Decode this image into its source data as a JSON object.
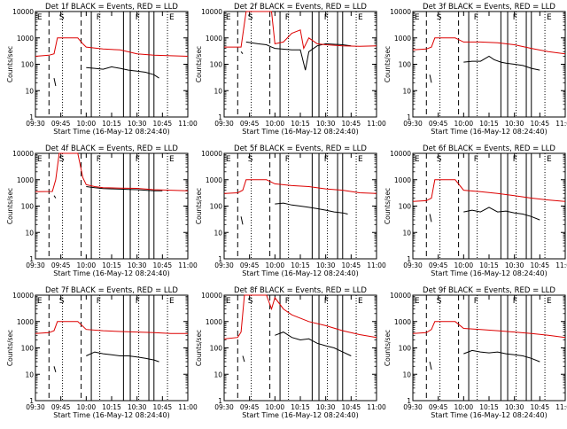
{
  "figure": {
    "xlabel_template": "Start Time (16-May-12 08:24:40)",
    "ylabel": "Counts/sec",
    "title_suffix": " BLACK = Events, RED = LLD",
    "xticks": [
      "09:30",
      "09:45",
      "10:00",
      "10:15",
      "10:30",
      "10:45",
      "11:00"
    ],
    "yticks": [
      "1",
      "10",
      "100",
      "1000",
      "10000"
    ],
    "marker_labels": [
      "E",
      "S",
      "F",
      "F",
      "E"
    ],
    "colors": {
      "events": "#000000",
      "lld": "#dd0000",
      "axes": "#000000"
    }
  },
  "chart_data": [
    {
      "type": "line",
      "title": "Det 1f BLACK = Events, RED = LLD",
      "xlabel": "Start Time (16-May-12 08:24:40)",
      "ylabel": "Counts/sec",
      "xrange": [
        "09:30",
        "11:00"
      ],
      "ylim": [
        1,
        10000
      ],
      "yscale": "log",
      "series": [
        {
          "name": "BLACK = Events",
          "segments": [
            {
              "x": [
                "09:41",
                "09:42"
              ],
              "y": [
                30,
                15
              ]
            },
            {
              "x": [
                "10:00",
                "10:05",
                "10:10",
                "10:15",
                "10:20",
                "10:25",
                "10:30",
                "10:35",
                "10:40",
                "10:43"
              ],
              "y": [
                75,
                70,
                65,
                80,
                70,
                60,
                55,
                50,
                40,
                30
              ]
            }
          ]
        },
        {
          "name": "RED = LLD",
          "segments": [
            {
              "x": [
                "09:30",
                "09:38",
                "09:41",
                "09:43",
                "09:45",
                "09:50",
                "09:55",
                "09:58",
                "10:00",
                "10:10",
                "10:20",
                "10:30",
                "10:40",
                "10:50",
                "11:00"
              ],
              "y": [
                200,
                220,
                250,
                1000,
                1000,
                1000,
                1000,
                600,
                450,
                380,
                350,
                250,
                220,
                210,
                200
              ]
            }
          ]
        }
      ]
    },
    {
      "type": "line",
      "title": "Det 2f BLACK = Events, RED = LLD",
      "xlabel": "Start Time (16-May-12 08:24:40)",
      "ylabel": "Counts/sec",
      "xrange": [
        "09:30",
        "11:00"
      ],
      "ylim": [
        1,
        10000
      ],
      "yscale": "log",
      "series": [
        {
          "name": "BLACK = Events",
          "segments": [
            {
              "x": [
                "09:40",
                "09:41"
              ],
              "y": [
                300,
                250
              ]
            },
            {
              "x": [
                "09:43",
                "09:50",
                "09:55",
                "09:58",
                "10:00",
                "10:10",
                "10:15",
                "10:18",
                "10:20",
                "10:25",
                "10:30",
                "10:40",
                "10:45"
              ],
              "y": [
                700,
                600,
                550,
                450,
                400,
                350,
                350,
                60,
                300,
                500,
                600,
                550,
                500
              ]
            }
          ]
        },
        {
          "name": "RED = LLD",
          "segments": [
            {
              "x": [
                "09:30",
                "09:40",
                "09:43",
                "09:50",
                "09:55",
                "09:58",
                "10:00",
                "10:05",
                "10:10",
                "10:15",
                "10:17",
                "10:20",
                "10:25",
                "10:30",
                "10:40",
                "10:50",
                "11:00"
              ],
              "y": [
                450,
                450,
                10000,
                10000,
                10000,
                10000,
                600,
                700,
                1500,
                2000,
                400,
                1000,
                600,
                550,
                500,
                480,
                500
              ]
            }
          ]
        }
      ]
    },
    {
      "type": "line",
      "title": "Det 3f BLACK = Events, RED = LLD",
      "xlabel": "Start Time (16-May-12 08:24:40)",
      "ylabel": "Counts/sec",
      "xrange": [
        "09:30",
        "11:00"
      ],
      "ylim": [
        1,
        10000
      ],
      "yscale": "log",
      "series": [
        {
          "name": "BLACK = Events",
          "segments": [
            {
              "x": [
                "09:40",
                "09:41"
              ],
              "y": [
                40,
                20
              ]
            },
            {
              "x": [
                "10:00",
                "10:05",
                "10:10",
                "10:15",
                "10:18",
                "10:22",
                "10:25",
                "10:30",
                "10:35",
                "10:40",
                "10:45"
              ],
              "y": [
                120,
                130,
                130,
                200,
                150,
                120,
                110,
                100,
                90,
                70,
                60
              ]
            }
          ]
        },
        {
          "name": "RED = LLD",
          "segments": [
            {
              "x": [
                "09:30",
                "09:38",
                "09:41",
                "09:43",
                "09:50",
                "09:55",
                "10:00",
                "10:10",
                "10:20",
                "10:30",
                "10:40",
                "10:50",
                "11:00"
              ],
              "y": [
                350,
                380,
                450,
                1000,
                1000,
                1000,
                700,
                700,
                650,
                550,
                400,
                300,
                250
              ]
            }
          ]
        }
      ]
    },
    {
      "type": "line",
      "title": "Det 4f BLACK = Events, RED = LLD",
      "xlabel": "Start Time (16-May-12 08:24:40)",
      "ylabel": "Counts/sec",
      "xrange": [
        "09:30",
        "11:00"
      ],
      "ylim": [
        1,
        10000
      ],
      "yscale": "log",
      "series": [
        {
          "name": "BLACK = Events",
          "segments": [
            {
              "x": [
                "09:41",
                "09:42"
              ],
              "y": [
                250,
                200
              ]
            },
            {
              "x": [
                "10:00",
                "10:05",
                "10:10",
                "10:15",
                "10:20",
                "10:25",
                "10:30",
                "10:35",
                "10:40",
                "10:45"
              ],
              "y": [
                550,
                500,
                460,
                450,
                440,
                430,
                420,
                400,
                380,
                380
              ]
            }
          ]
        },
        {
          "name": "RED = LLD",
          "segments": [
            {
              "x": [
                "09:30",
                "09:40",
                "09:42",
                "09:44",
                "09:50",
                "09:55",
                "09:58",
                "10:00",
                "10:05",
                "10:10",
                "10:20",
                "10:30",
                "10:40",
                "10:50",
                "11:00"
              ],
              "y": [
                350,
                360,
                1000,
                10000,
                10000,
                10000,
                1200,
                650,
                550,
                500,
                480,
                470,
                420,
                400,
                380
              ]
            }
          ]
        }
      ]
    },
    {
      "type": "line",
      "title": "Det 5f BLACK = Events, RED = LLD",
      "xlabel": "Start Time (16-May-12 08:24:40)",
      "ylabel": "Counts/sec",
      "xrange": [
        "09:30",
        "11:00"
      ],
      "ylim": [
        1,
        10000
      ],
      "yscale": "log",
      "series": [
        {
          "name": "BLACK = Events",
          "segments": [
            {
              "x": [
                "09:40",
                "09:41"
              ],
              "y": [
                40,
                20
              ]
            },
            {
              "x": [
                "10:00",
                "10:05",
                "10:10",
                "10:15",
                "10:20",
                "10:25",
                "10:30",
                "10:35",
                "10:40",
                "10:43"
              ],
              "y": [
                120,
                130,
                110,
                100,
                90,
                80,
                70,
                60,
                55,
                50
              ]
            }
          ]
        },
        {
          "name": "RED = LLD",
          "segments": [
            {
              "x": [
                "09:30",
                "09:38",
                "09:41",
                "09:43",
                "09:50",
                "09:55",
                "10:00",
                "10:10",
                "10:20",
                "10:30",
                "10:40",
                "10:50",
                "11:00"
              ],
              "y": [
                300,
                320,
                400,
                1000,
                1000,
                1000,
                700,
                600,
                550,
                450,
                400,
                320,
                300
              ]
            }
          ]
        }
      ]
    },
    {
      "type": "line",
      "title": "Det 6f BLACK = Events, RED = LLD",
      "xlabel": "Start Time (16-May-12 08:24:40)",
      "ylabel": "Counts/sec",
      "xrange": [
        "09:30",
        "11:00"
      ],
      "ylim": [
        1,
        10000
      ],
      "yscale": "log",
      "series": [
        {
          "name": "BLACK = Events",
          "segments": [
            {
              "x": [
                "09:40",
                "09:41"
              ],
              "y": [
                50,
                25
              ]
            },
            {
              "x": [
                "10:00",
                "10:05",
                "10:10",
                "10:15",
                "10:20",
                "10:25",
                "10:30",
                "10:35",
                "10:40",
                "10:45"
              ],
              "y": [
                60,
                70,
                60,
                90,
                60,
                65,
                55,
                50,
                40,
                30
              ]
            }
          ]
        },
        {
          "name": "RED = LLD",
          "segments": [
            {
              "x": [
                "09:30",
                "09:38",
                "09:41",
                "09:43",
                "09:50",
                "09:55",
                "10:00",
                "10:10",
                "10:20",
                "10:30",
                "10:40",
                "10:50",
                "11:00"
              ],
              "y": [
                150,
                160,
                200,
                1000,
                1000,
                1000,
                400,
                350,
                300,
                250,
                200,
                170,
                150
              ]
            }
          ]
        }
      ]
    },
    {
      "type": "line",
      "title": "Det 7f BLACK = Events, RED = LLD",
      "xlabel": "Start Time (16-May-12 08:24:40)",
      "ylabel": "Counts/sec",
      "xrange": [
        "09:30",
        "11:00"
      ],
      "ylim": [
        1,
        10000
      ],
      "yscale": "log",
      "series": [
        {
          "name": "BLACK = Events",
          "segments": [
            {
              "x": [
                "09:41",
                "09:42"
              ],
              "y": [
                20,
                12
              ]
            },
            {
              "x": [
                "10:00",
                "10:05",
                "10:10",
                "10:15",
                "10:20",
                "10:25",
                "10:30",
                "10:35",
                "10:40",
                "10:43"
              ],
              "y": [
                50,
                70,
                60,
                55,
                50,
                50,
                45,
                40,
                35,
                30
              ]
            }
          ]
        },
        {
          "name": "RED = LLD",
          "segments": [
            {
              "x": [
                "09:30",
                "09:38",
                "09:41",
                "09:43",
                "09:50",
                "09:55",
                "10:00",
                "10:10",
                "10:20",
                "10:30",
                "10:40",
                "10:50",
                "11:00"
              ],
              "y": [
                350,
                380,
                450,
                1000,
                1000,
                1000,
                500,
                450,
                420,
                400,
                380,
                350,
                350
              ]
            }
          ]
        }
      ]
    },
    {
      "type": "line",
      "title": "Det 8f BLACK = Events, RED = LLD",
      "xlabel": "Start Time (16-May-12 08:24:40)",
      "ylabel": "Counts/sec",
      "xrange": [
        "09:30",
        "11:00"
      ],
      "ylim": [
        1,
        10000
      ],
      "yscale": "log",
      "series": [
        {
          "name": "BLACK = Events",
          "segments": [
            {
              "x": [
                "09:41",
                "09:42"
              ],
              "y": [
                50,
                30
              ]
            },
            {
              "x": [
                "10:00",
                "10:05",
                "10:10",
                "10:15",
                "10:20",
                "10:25",
                "10:30",
                "10:35",
                "10:40",
                "10:45"
              ],
              "y": [
                300,
                400,
                250,
                200,
                220,
                150,
                120,
                100,
                70,
                50
              ]
            }
          ]
        },
        {
          "name": "RED = LLD",
          "segments": [
            {
              "x": [
                "09:30",
                "09:38",
                "09:40",
                "09:42",
                "09:50",
                "09:55",
                "09:58",
                "10:00",
                "10:05",
                "10:10",
                "10:20",
                "10:30",
                "10:40",
                "10:50",
                "11:00"
              ],
              "y": [
                220,
                250,
                400,
                10000,
                10000,
                10000,
                3000,
                8000,
                3000,
                1800,
                1000,
                700,
                450,
                320,
                250
              ]
            }
          ]
        }
      ]
    },
    {
      "type": "line",
      "title": "Det 9f BLACK = Events, RED = LLD",
      "xlabel": "Start Time (16-May-12 08:24:40)",
      "ylabel": "Counts/sec",
      "xrange": [
        "09:30",
        "11:00"
      ],
      "ylim": [
        1,
        10000
      ],
      "yscale": "log",
      "series": [
        {
          "name": "BLACK = Events",
          "segments": [
            {
              "x": [
                "09:40",
                "09:41"
              ],
              "y": [
                30,
                15
              ]
            },
            {
              "x": [
                "10:00",
                "10:05",
                "10:10",
                "10:15",
                "10:20",
                "10:25",
                "10:30",
                "10:35",
                "10:40",
                "10:45"
              ],
              "y": [
                60,
                80,
                70,
                65,
                70,
                60,
                55,
                50,
                40,
                30
              ]
            }
          ]
        },
        {
          "name": "RED = LLD",
          "segments": [
            {
              "x": [
                "09:30",
                "09:38",
                "09:41",
                "09:43",
                "09:50",
                "09:55",
                "10:00",
                "10:10",
                "10:20",
                "10:30",
                "10:40",
                "10:50",
                "11:00"
              ],
              "y": [
                350,
                380,
                500,
                1000,
                1000,
                1000,
                550,
                500,
                450,
                400,
                350,
                300,
                250
              ]
            }
          ]
        }
      ]
    }
  ],
  "markers": {
    "dashed": [
      "09:38",
      "09:57"
    ],
    "solid": [
      "10:03",
      "10:22",
      "10:26",
      "10:37",
      "10:40"
    ],
    "dotted": [
      "09:46",
      "10:08",
      "10:31",
      "10:48"
    ]
  }
}
